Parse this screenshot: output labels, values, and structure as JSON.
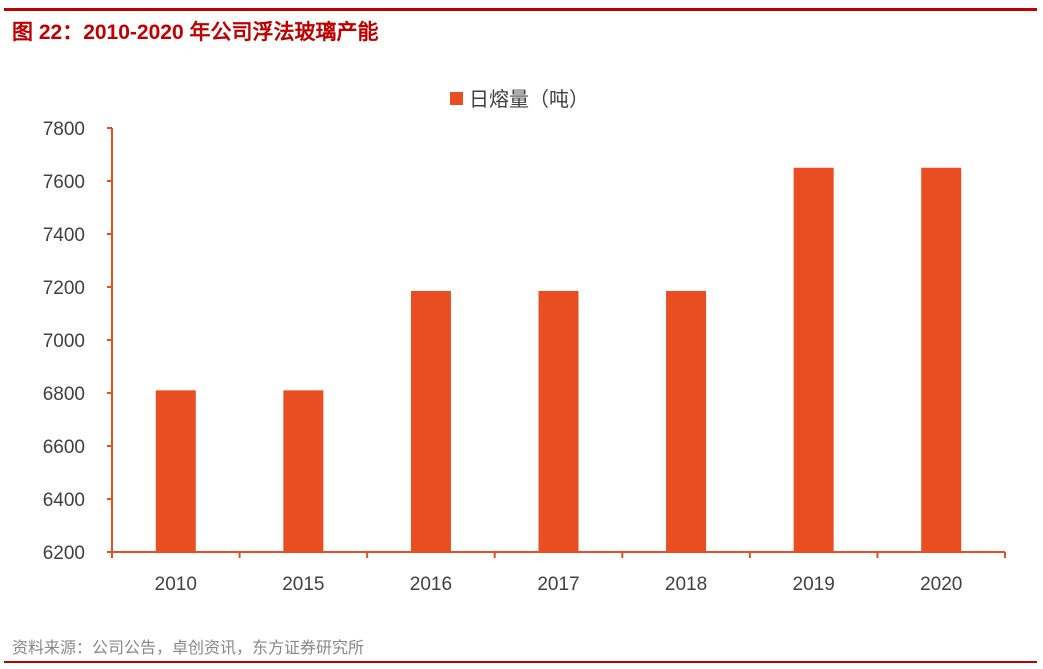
{
  "figure_title": "图 22：2010-2020 年公司浮法玻璃产能",
  "source": "资料来源：公司公告，卓创资讯，东方证券研究所",
  "chart_data": {
    "type": "bar",
    "title": "",
    "categories": [
      "2010",
      "2015",
      "2016",
      "2017",
      "2018",
      "2019",
      "2020"
    ],
    "series": [
      {
        "name": "日熔量（吨）",
        "values": [
          6810,
          6810,
          7185,
          7185,
          7185,
          7650,
          7650
        ],
        "color": "#e84e22"
      }
    ],
    "ylim": [
      6200,
      7800
    ],
    "yticks": [
      6200,
      6400,
      6600,
      6800,
      7000,
      7200,
      7400,
      7600,
      7800
    ],
    "xlabel": "",
    "ylabel": "",
    "grid": false,
    "legend": "top-center",
    "axis_color": "#e84e22"
  }
}
